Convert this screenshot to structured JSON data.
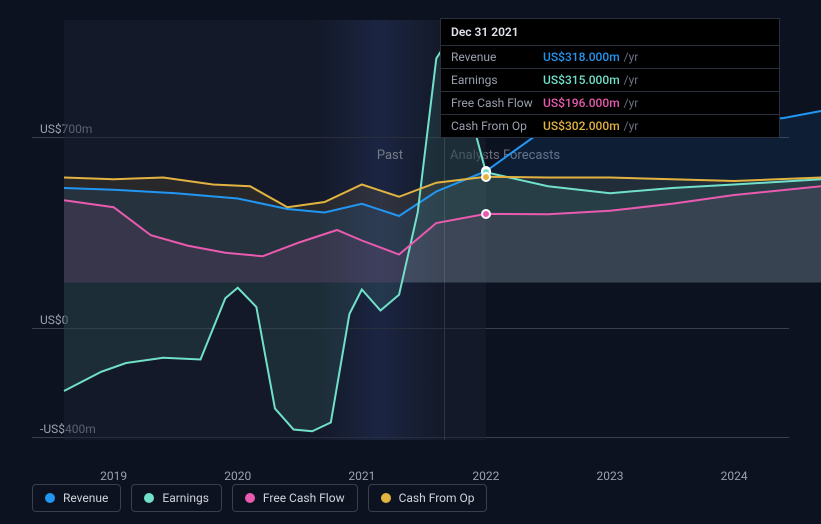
{
  "chart": {
    "type": "line",
    "background_color": "#0d1220",
    "grid_color": "#3a3f4f",
    "text_color": "#9aa0b0",
    "past_label": "Past",
    "forecast_label": "Analysts Forecasts",
    "x_ticks": [
      "2019",
      "2020",
      "2021",
      "2022",
      "2023",
      "2024"
    ],
    "x_range": [
      2018.6,
      2024.7
    ],
    "y_ticks": [
      {
        "value": 700,
        "label": "US$700m"
      },
      {
        "value": 0,
        "label": "US$0"
      },
      {
        "value": -400,
        "label": "-US$400m"
      }
    ],
    "y_range": [
      -450,
      750
    ],
    "split_x": 2022.0,
    "series": [
      {
        "key": "revenue",
        "name": "Revenue",
        "color": "#2196f3",
        "line_width": 2,
        "fill_opacity": 0.1,
        "points": [
          [
            2018.6,
            270
          ],
          [
            2019.0,
            265
          ],
          [
            2019.5,
            255
          ],
          [
            2020.0,
            240
          ],
          [
            2020.4,
            210
          ],
          [
            2020.7,
            200
          ],
          [
            2021.0,
            225
          ],
          [
            2021.3,
            190
          ],
          [
            2021.6,
            260
          ],
          [
            2022.0,
            318
          ],
          [
            2022.5,
            445
          ],
          [
            2023.0,
            478
          ],
          [
            2023.5,
            465
          ],
          [
            2024.0,
            455
          ],
          [
            2024.4,
            470
          ],
          [
            2024.7,
            490
          ]
        ]
      },
      {
        "key": "earnings",
        "name": "Earnings",
        "color": "#71e0c9",
        "line_width": 2,
        "fill_opacity": 0.1,
        "points": [
          [
            2018.6,
            -310
          ],
          [
            2018.9,
            -255
          ],
          [
            2019.1,
            -230
          ],
          [
            2019.4,
            -215
          ],
          [
            2019.7,
            -220
          ],
          [
            2019.9,
            -45
          ],
          [
            2020.0,
            -15
          ],
          [
            2020.15,
            -70
          ],
          [
            2020.3,
            -360
          ],
          [
            2020.45,
            -420
          ],
          [
            2020.6,
            -425
          ],
          [
            2020.75,
            -400
          ],
          [
            2020.9,
            -90
          ],
          [
            2021.0,
            -20
          ],
          [
            2021.15,
            -80
          ],
          [
            2021.3,
            -35
          ],
          [
            2021.45,
            200
          ],
          [
            2021.6,
            640
          ],
          [
            2021.7,
            695
          ],
          [
            2021.8,
            580
          ],
          [
            2022.0,
            315
          ],
          [
            2022.5,
            275
          ],
          [
            2023.0,
            255
          ],
          [
            2023.5,
            270
          ],
          [
            2024.0,
            280
          ],
          [
            2024.7,
            295
          ]
        ]
      },
      {
        "key": "fcf",
        "name": "Free Cash Flow",
        "color": "#e85bae",
        "line_width": 2,
        "fill_opacity": 0.1,
        "points": [
          [
            2018.6,
            235
          ],
          [
            2019.0,
            215
          ],
          [
            2019.3,
            135
          ],
          [
            2019.6,
            105
          ],
          [
            2019.9,
            85
          ],
          [
            2020.2,
            75
          ],
          [
            2020.5,
            115
          ],
          [
            2020.8,
            150
          ],
          [
            2021.0,
            120
          ],
          [
            2021.3,
            80
          ],
          [
            2021.6,
            170
          ],
          [
            2022.0,
            196
          ],
          [
            2022.5,
            195
          ],
          [
            2023.0,
            205
          ],
          [
            2023.5,
            225
          ],
          [
            2024.0,
            250
          ],
          [
            2024.7,
            275
          ]
        ]
      },
      {
        "key": "cfo",
        "name": "Cash From Op",
        "color": "#e3b341",
        "line_width": 2,
        "fill_opacity": 0.1,
        "points": [
          [
            2018.6,
            300
          ],
          [
            2019.0,
            295
          ],
          [
            2019.4,
            300
          ],
          [
            2019.8,
            280
          ],
          [
            2020.1,
            275
          ],
          [
            2020.4,
            215
          ],
          [
            2020.7,
            230
          ],
          [
            2021.0,
            280
          ],
          [
            2021.3,
            245
          ],
          [
            2021.6,
            285
          ],
          [
            2022.0,
            302
          ],
          [
            2022.5,
            300
          ],
          [
            2023.0,
            300
          ],
          [
            2023.5,
            295
          ],
          [
            2024.0,
            290
          ],
          [
            2024.7,
            300
          ]
        ]
      }
    ]
  },
  "tooltip": {
    "date": "Dec 31 2021",
    "unit": "/yr",
    "rows": [
      {
        "label": "Revenue",
        "value": "US$318.000m",
        "color": "#2196f3"
      },
      {
        "label": "Earnings",
        "value": "US$315.000m",
        "color": "#71e0c9"
      },
      {
        "label": "Free Cash Flow",
        "value": "US$196.000m",
        "color": "#e85bae"
      },
      {
        "label": "Cash From Op",
        "value": "US$302.000m",
        "color": "#e3b341"
      }
    ]
  },
  "legend": [
    {
      "label": "Revenue",
      "color": "#2196f3"
    },
    {
      "label": "Earnings",
      "color": "#71e0c9"
    },
    {
      "label": "Free Cash Flow",
      "color": "#e85bae"
    },
    {
      "label": "Cash From Op",
      "color": "#e3b341"
    }
  ]
}
